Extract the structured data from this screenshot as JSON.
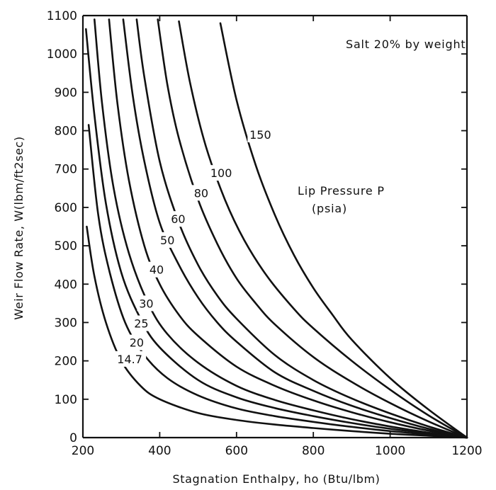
{
  "chart_data": {
    "type": "line",
    "xlabel": "Stagnation  Enthalpy, ho (Btu/lbm)",
    "ylabel": "Weir  Flow  Rate,  W(lbm/ft2sec)",
    "xlim": [
      200,
      1200
    ],
    "ylim": [
      0,
      1100
    ],
    "xticks": [
      200,
      400,
      600,
      800,
      1000,
      1200
    ],
    "yticks": [
      0,
      100,
      200,
      300,
      400,
      500,
      600,
      700,
      800,
      900,
      1000,
      1100
    ],
    "grid": false,
    "annotations": {
      "salt": "Salt 20% by weight",
      "legend_title_line1": "Lip Pressure P",
      "legend_title_line2": "(psia)"
    },
    "series": [
      {
        "name": "14.7",
        "label_x": 322,
        "label_y": 205,
        "x": [
          210,
          230,
          260,
          300,
          350,
          400,
          500,
          600,
          700,
          800,
          900,
          1000,
          1100,
          1200
        ],
        "y": [
          550,
          420,
          300,
          200,
          135,
          100,
          64,
          46,
          34,
          25,
          17,
          10,
          5,
          0
        ]
      },
      {
        "name": "20",
        "label_x": 340,
        "label_y": 248,
        "x": [
          215,
          240,
          270,
          310,
          360,
          420,
          500,
          600,
          700,
          800,
          900,
          1000,
          1100,
          1200
        ],
        "y": [
          815,
          580,
          430,
          300,
          215,
          155,
          110,
          76,
          56,
          41,
          28,
          17,
          8,
          0
        ]
      },
      {
        "name": "25",
        "label_x": 352,
        "label_y": 298,
        "x": [
          208,
          230,
          260,
          300,
          350,
          400,
          500,
          600,
          700,
          800,
          900,
          1000,
          1100,
          1200
        ],
        "y": [
          1065,
          840,
          610,
          430,
          310,
          235,
          150,
          105,
          77,
          56,
          38,
          23,
          11,
          0
        ]
      },
      {
        "name": "30",
        "label_x": 365,
        "label_y": 350,
        "x": [
          230,
          250,
          280,
          320,
          370,
          420,
          500,
          600,
          700,
          800,
          900,
          1000,
          1100,
          1200
        ],
        "y": [
          1090,
          870,
          650,
          480,
          350,
          270,
          195,
          135,
          98,
          71,
          48,
          29,
          13,
          0
        ]
      },
      {
        "name": "40",
        "label_x": 392,
        "label_y": 438,
        "x": [
          268,
          290,
          320,
          360,
          400,
          450,
          500,
          600,
          700,
          800,
          900,
          1000,
          1100,
          1200
        ],
        "y": [
          1090,
          870,
          670,
          500,
          400,
          320,
          265,
          185,
          135,
          97,
          66,
          40,
          18,
          0
        ]
      },
      {
        "name": "50",
        "label_x": 420,
        "label_y": 515,
        "x": [
          305,
          330,
          360,
          400,
          450,
          500,
          550,
          600,
          700,
          800,
          900,
          1000,
          1100,
          1200
        ],
        "y": [
          1090,
          890,
          720,
          560,
          450,
          365,
          300,
          250,
          170,
          122,
          83,
          51,
          23,
          0
        ]
      },
      {
        "name": "60",
        "label_x": 448,
        "label_y": 570,
        "x": [
          340,
          360,
          400,
          450,
          500,
          550,
          600,
          700,
          800,
          900,
          1000,
          1100,
          1200
        ],
        "y": [
          1090,
          940,
          720,
          560,
          450,
          370,
          310,
          215,
          150,
          102,
          63,
          29,
          0
        ]
      },
      {
        "name": "80",
        "label_x": 508,
        "label_y": 638,
        "x": [
          395,
          420,
          450,
          500,
          550,
          600,
          650,
          700,
          800,
          900,
          1000,
          1100,
          1200
        ],
        "y": [
          1090,
          920,
          780,
          620,
          505,
          415,
          350,
          295,
          210,
          145,
          90,
          42,
          0
        ]
      },
      {
        "name": "100",
        "label_x": 560,
        "label_y": 690,
        "x": [
          450,
          480,
          520,
          570,
          620,
          680,
          750,
          800,
          900,
          1000,
          1100,
          1200
        ],
        "y": [
          1085,
          920,
          760,
          620,
          515,
          420,
          335,
          285,
          200,
          125,
          58,
          0
        ]
      },
      {
        "name": "150",
        "label_x": 662,
        "label_y": 790,
        "x": [
          558,
          600,
          650,
          700,
          750,
          800,
          850,
          900,
          1000,
          1100,
          1200
        ],
        "y": [
          1080,
          880,
          710,
          580,
          475,
          390,
          320,
          255,
          155,
          73,
          0
        ]
      }
    ]
  }
}
